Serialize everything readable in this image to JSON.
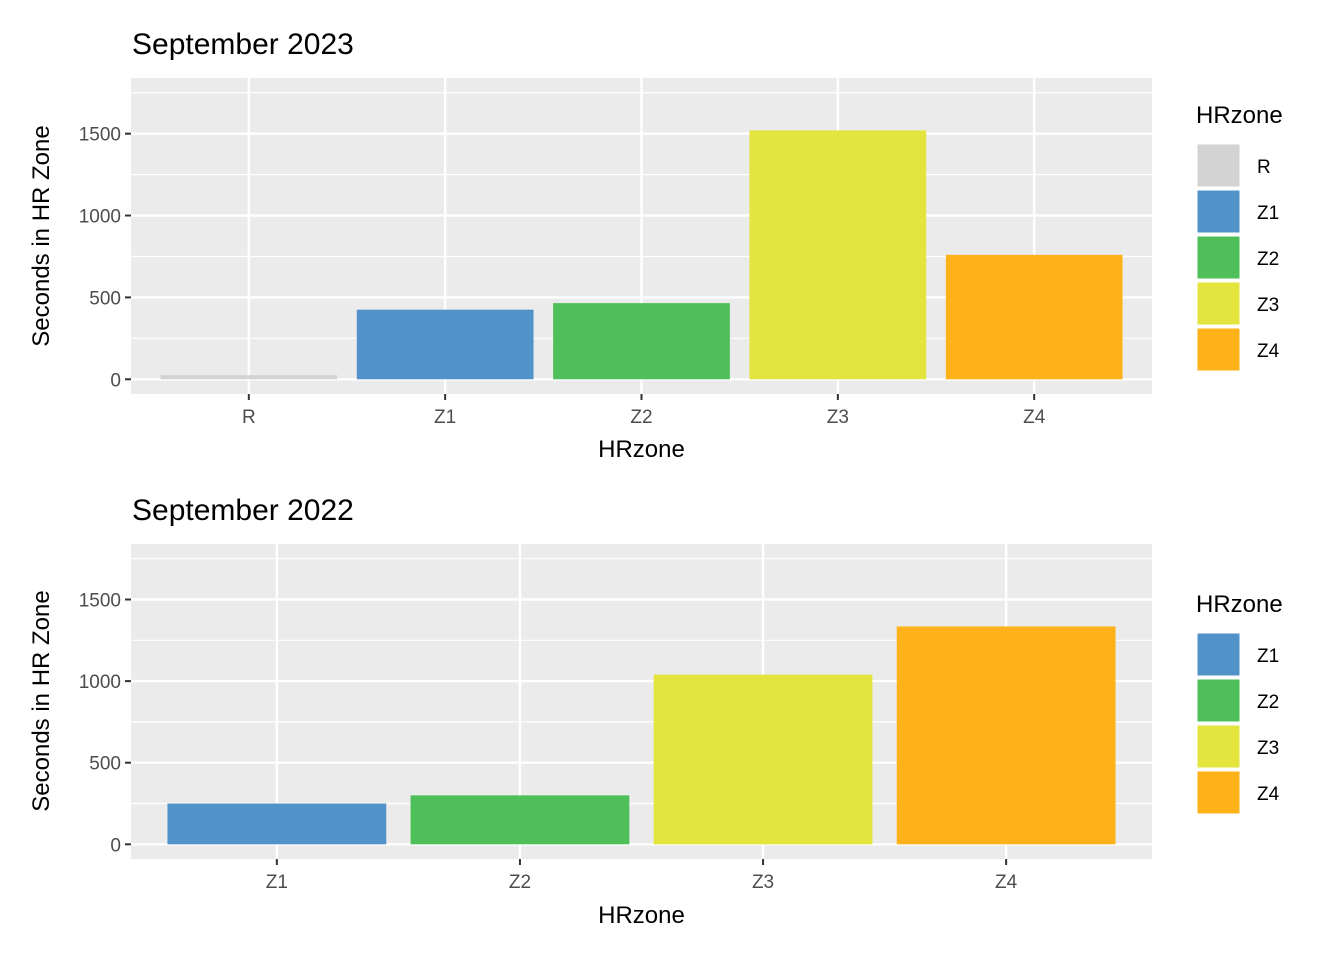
{
  "chart_data": [
    {
      "type": "bar",
      "title": "September 2023",
      "xlabel": "HRzone",
      "ylabel": "Seconds in HR Zone",
      "categories": [
        "R",
        "Z1",
        "Z2",
        "Z3",
        "Z4"
      ],
      "values": [
        25,
        425,
        465,
        1520,
        760
      ],
      "colors": [
        "#d3d3d3",
        "#5192c9",
        "#4ebf59",
        "#e4e43e",
        "#feb21a"
      ],
      "ylim": [
        -90,
        1840
      ],
      "yticks": [
        0,
        500,
        1000,
        1500
      ],
      "ytick_labels": [
        "0",
        "500",
        "1000",
        "1500"
      ],
      "grid": true,
      "legend": {
        "title": "HRzone",
        "position": "right",
        "entries": [
          "R",
          "Z1",
          "Z2",
          "Z3",
          "Z4"
        ]
      }
    },
    {
      "type": "bar",
      "title": "September 2022",
      "xlabel": "HRzone",
      "ylabel": "Seconds in HR Zone",
      "categories": [
        "Z1",
        "Z2",
        "Z3",
        "Z4"
      ],
      "values": [
        250,
        300,
        1040,
        1335
      ],
      "colors": [
        "#5192c9",
        "#4ebf59",
        "#e4e43e",
        "#feb21a"
      ],
      "ylim": [
        -90,
        1840
      ],
      "yticks": [
        0,
        500,
        1000,
        1500
      ],
      "ytick_labels": [
        "0",
        "500",
        "1000",
        "1500"
      ],
      "grid": true,
      "legend": {
        "title": "HRzone",
        "position": "right",
        "entries": [
          "Z1",
          "Z2",
          "Z3",
          "Z4"
        ]
      }
    }
  ]
}
